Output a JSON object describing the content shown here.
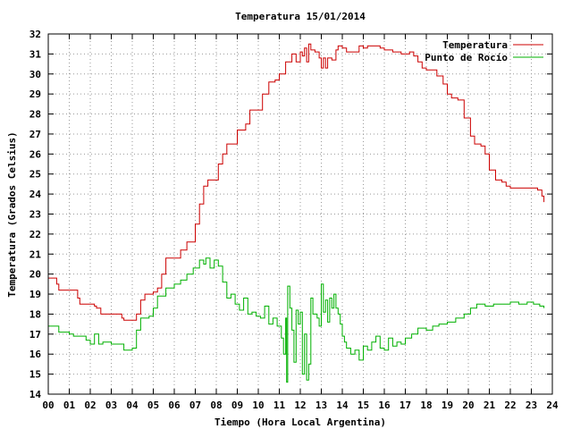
{
  "chart_data": {
    "type": "line",
    "title": "Temperatura 15/01/2014",
    "xlabel": "Tiempo (Hora Local Argentina)",
    "ylabel": "Temperatura (Grados Celsius)",
    "xlim": [
      0,
      24
    ],
    "ylim": [
      14,
      32
    ],
    "x_ticks": [
      "00",
      "01",
      "02",
      "03",
      "04",
      "05",
      "06",
      "07",
      "08",
      "09",
      "10",
      "11",
      "12",
      "13",
      "14",
      "15",
      "16",
      "17",
      "18",
      "19",
      "20",
      "21",
      "22",
      "23",
      "24"
    ],
    "y_ticks": [
      14,
      15,
      16,
      17,
      18,
      19,
      20,
      21,
      22,
      23,
      24,
      25,
      26,
      27,
      28,
      29,
      30,
      31,
      32
    ],
    "grid": true,
    "legend_position": "top-right",
    "series": [
      {
        "name": "Temperatura",
        "color": "#cc0000",
        "x": [
          0,
          0.4,
          0.5,
          1,
          1.4,
          1.5,
          2.2,
          2.3,
          2.5,
          3.5,
          3.6,
          4,
          4.2,
          4.4,
          4.6,
          5.0,
          5.2,
          5.4,
          5.6,
          6.0,
          6.3,
          6.6,
          6.9,
          7.0,
          7.2,
          7.4,
          7.6,
          7.8,
          8.1,
          8.3,
          8.5,
          8.8,
          9.0,
          9.4,
          9.6,
          9.9,
          10.2,
          10.5,
          10.8,
          11.0,
          11.3,
          11.6,
          11.8,
          12.0,
          12.1,
          12.2,
          12.3,
          12.4,
          12.5,
          12.7,
          12.9,
          13.0,
          13.1,
          13.2,
          13.3,
          13.5,
          13.7,
          13.8,
          14.0,
          14.2,
          14.4,
          14.6,
          14.8,
          15.0,
          15.2,
          15.5,
          15.8,
          16.0,
          16.4,
          16.8,
          17.0,
          17.2,
          17.4,
          17.6,
          17.8,
          18.0,
          18.2,
          18.5,
          18.8,
          19.0,
          19.2,
          19.5,
          19.8,
          20.1,
          20.3,
          20.6,
          20.8,
          21.0,
          21.3,
          21.6,
          21.8,
          22.0,
          22.3,
          22.6,
          22.9,
          23.1,
          23.3,
          23.5,
          23.6
        ],
        "values": [
          19.8,
          19.5,
          19.2,
          19.2,
          18.8,
          18.5,
          18.4,
          18.3,
          18.0,
          17.8,
          17.7,
          17.7,
          18.0,
          18.7,
          19.0,
          19.1,
          19.3,
          20.0,
          20.8,
          20.8,
          21.2,
          21.6,
          21.6,
          22.5,
          23.5,
          24.4,
          24.7,
          24.7,
          25.5,
          26.0,
          26.5,
          26.5,
          27.2,
          27.5,
          28.2,
          28.2,
          29.0,
          29.6,
          29.7,
          30.0,
          30.6,
          31.0,
          30.6,
          31.1,
          30.9,
          31.3,
          30.6,
          31.5,
          31.2,
          31.1,
          30.8,
          30.3,
          30.8,
          30.3,
          30.8,
          30.7,
          31.2,
          31.4,
          31.3,
          31.1,
          31.1,
          31.1,
          31.4,
          31.3,
          31.4,
          31.4,
          31.3,
          31.2,
          31.1,
          31.0,
          31.0,
          31.1,
          30.9,
          30.6,
          30.3,
          30.2,
          30.2,
          29.9,
          29.5,
          29.0,
          28.8,
          28.7,
          27.8,
          26.9,
          26.5,
          26.4,
          26.0,
          25.2,
          24.7,
          24.6,
          24.4,
          24.3,
          24.3,
          24.3,
          24.3,
          24.3,
          24.2,
          23.9,
          23.6
        ]
      },
      {
        "name": "Punto de Rocío",
        "color": "#00b000",
        "x": [
          0,
          0.2,
          0.5,
          1.0,
          1.2,
          1.8,
          2.0,
          2.2,
          2.4,
          2.6,
          3.0,
          3.6,
          4.0,
          4.2,
          4.4,
          4.8,
          5.0,
          5.2,
          5.6,
          6.0,
          6.3,
          6.6,
          6.9,
          7.2,
          7.4,
          7.5,
          7.7,
          7.9,
          8.1,
          8.3,
          8.5,
          8.7,
          8.9,
          9.1,
          9.3,
          9.5,
          9.7,
          9.9,
          10.1,
          10.3,
          10.5,
          10.7,
          10.9,
          11.1,
          11.2,
          11.3,
          11.35,
          11.4,
          11.5,
          11.6,
          11.7,
          11.8,
          11.9,
          12.0,
          12.1,
          12.2,
          12.3,
          12.4,
          12.5,
          12.6,
          12.8,
          12.9,
          13.0,
          13.1,
          13.2,
          13.3,
          13.4,
          13.5,
          13.6,
          13.7,
          13.8,
          13.9,
          14.0,
          14.1,
          14.2,
          14.4,
          14.6,
          14.8,
          15.0,
          15.2,
          15.4,
          15.6,
          15.8,
          16.0,
          16.2,
          16.4,
          16.6,
          16.8,
          17.0,
          17.3,
          17.6,
          18.0,
          18.3,
          18.6,
          19.0,
          19.4,
          19.8,
          20.1,
          20.4,
          20.8,
          21.2,
          21.6,
          22.0,
          22.4,
          22.8,
          23.1,
          23.4,
          23.6
        ],
        "values": [
          17.4,
          17.4,
          17.1,
          17.0,
          16.9,
          16.7,
          16.5,
          17.0,
          16.5,
          16.6,
          16.5,
          16.2,
          16.3,
          17.2,
          17.8,
          17.9,
          18.3,
          18.9,
          19.3,
          19.5,
          19.7,
          20.0,
          20.3,
          20.7,
          20.5,
          20.8,
          20.3,
          20.7,
          20.4,
          19.6,
          18.8,
          19.0,
          18.5,
          18.2,
          18.8,
          18.0,
          18.1,
          17.9,
          17.8,
          18.4,
          17.5,
          17.8,
          17.4,
          16.8,
          16.0,
          17.8,
          14.6,
          19.4,
          18.3,
          17.2,
          15.6,
          18.2,
          17.5,
          18.1,
          15.0,
          17.0,
          14.7,
          15.5,
          18.8,
          18.0,
          17.8,
          17.4,
          19.5,
          18.1,
          18.7,
          17.6,
          18.8,
          18.3,
          19.0,
          18.3,
          18.0,
          17.5,
          16.9,
          16.6,
          16.3,
          16.0,
          16.2,
          15.7,
          16.4,
          16.2,
          16.6,
          16.9,
          16.3,
          16.2,
          16.8,
          16.4,
          16.6,
          16.5,
          16.8,
          17.0,
          17.3,
          17.2,
          17.4,
          17.5,
          17.6,
          17.8,
          18.0,
          18.3,
          18.5,
          18.4,
          18.5,
          18.5,
          18.6,
          18.5,
          18.6,
          18.5,
          18.4,
          18.3
        ]
      }
    ]
  }
}
